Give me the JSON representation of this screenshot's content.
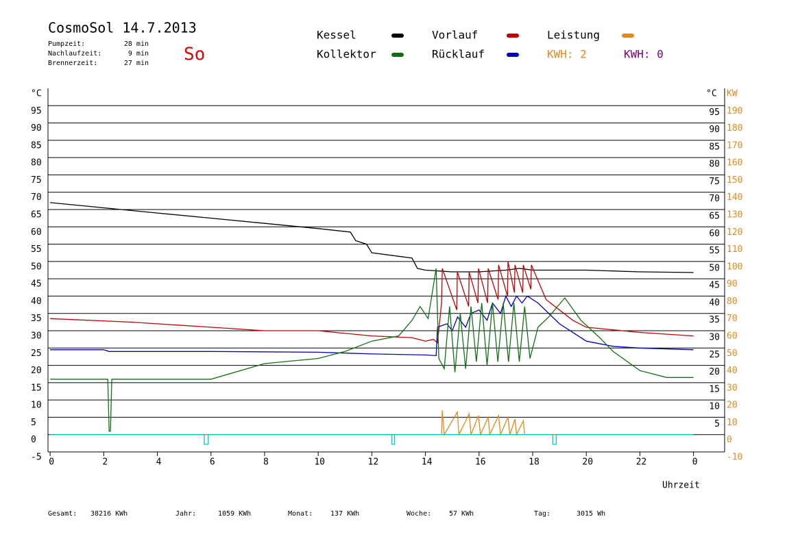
{
  "chart_data": {
    "type": "line",
    "title": "CosmoSol 14.7.2013",
    "day": "So",
    "stats": [
      {
        "label": "Pumpzeit:",
        "value": "28 min"
      },
      {
        "label": "Nachlaufzeit:",
        "value": "9 min"
      },
      {
        "label": "Brennerzeit:",
        "value": "27 min"
      }
    ],
    "kwh_labels": [
      {
        "text": "KWH: 2",
        "color": "#e08a1e"
      },
      {
        "text": "KWH: 0",
        "color": "#800080"
      }
    ],
    "y_unit": "°C",
    "y2_unit": "KW",
    "xlabel": "Uhrzeit",
    "xlim": [
      -0.08,
      25.16
    ],
    "xticks": [
      0,
      2,
      4,
      6,
      8,
      10,
      12,
      14,
      16,
      18,
      20,
      22,
      {
        "value": 24,
        "label": "0"
      }
    ],
    "ylim": [
      -5,
      100
    ],
    "yticks": [
      -5,
      0,
      5,
      10,
      15,
      20,
      25,
      30,
      35,
      40,
      45,
      50,
      55,
      60,
      65,
      70,
      75,
      80,
      85,
      90,
      95
    ],
    "y2lim": [
      -10,
      200
    ],
    "y2ticks": [
      -10,
      0,
      10,
      20,
      30,
      40,
      50,
      60,
      70,
      80,
      90,
      100,
      110,
      120,
      130,
      140,
      150,
      160,
      170,
      180,
      190
    ],
    "grid": true,
    "series": [
      {
        "name": "Kessel",
        "color": "#000000",
        "x": [
          0,
          2,
          4,
          6,
          8,
          10,
          11.2,
          11.4,
          11.8,
          12,
          13,
          13.5,
          13.7,
          14,
          15,
          16,
          17,
          17.5,
          18,
          20,
          22,
          24
        ],
        "values": [
          67,
          65.5,
          64,
          62.5,
          61,
          59.5,
          58.5,
          56,
          55,
          52.5,
          51.5,
          51,
          48,
          47.5,
          47,
          47,
          47.5,
          48,
          47.5,
          47.5,
          47,
          46.8
        ]
      },
      {
        "name": "Vorlauf",
        "color": "#c00000",
        "x": [
          0,
          3,
          6,
          8,
          10,
          12,
          13.5,
          14,
          14.3,
          14.45,
          14.6,
          14.63,
          15.17,
          15.19,
          15.61,
          15.63,
          15.96,
          15.98,
          16.32,
          16.34,
          16.71,
          16.73,
          17.06,
          17.08,
          17.32,
          17.34,
          17.63,
          17.65,
          17.93,
          17.95,
          18.5,
          19,
          19.5,
          20,
          22,
          24
        ],
        "values": [
          33.5,
          32.5,
          31,
          30,
          30,
          28.5,
          28,
          27,
          27.5,
          26.5,
          38,
          48,
          36,
          47,
          37,
          47,
          38,
          48,
          38,
          48,
          39,
          49,
          40,
          50,
          41,
          49,
          41,
          49,
          42,
          49,
          39,
          36,
          33,
          31,
          29.5,
          28.5
        ]
      },
      {
        "name": "Rücklauf",
        "color": "#0000c0",
        "x": [
          0,
          2,
          2.2,
          6,
          10,
          12,
          14,
          14.4,
          14.45,
          14.8,
          15,
          15.2,
          15.5,
          15.7,
          16,
          16.3,
          16.5,
          16.8,
          17,
          17.2,
          17.4,
          17.6,
          17.8,
          18.2,
          19,
          20,
          21,
          22,
          24
        ],
        "values": [
          24.5,
          24.5,
          24,
          24,
          23.8,
          23.3,
          23,
          22.8,
          31,
          32,
          30,
          34,
          31,
          35,
          36,
          33,
          38,
          35,
          40,
          37,
          40,
          38,
          40,
          38,
          32,
          27,
          25.5,
          25,
          24.5
        ]
      },
      {
        "name": "Kollektor",
        "color": "#107010",
        "x": [
          0,
          2,
          2.15,
          2.2,
          2.25,
          2.3,
          6,
          8,
          10,
          11,
          12,
          13,
          13.5,
          13.8,
          14.1,
          14.4,
          14.5,
          14.7,
          14.9,
          15.1,
          15.3,
          15.5,
          15.7,
          15.9,
          16.1,
          16.3,
          16.5,
          16.7,
          16.9,
          17.1,
          17.3,
          17.5,
          17.7,
          17.9,
          18.2,
          18.6,
          19.2,
          19.8,
          20.5,
          21,
          22,
          23,
          24
        ],
        "values": [
          16,
          16,
          16,
          1,
          1,
          16,
          16,
          20.5,
          22,
          24,
          27,
          28.5,
          33,
          37,
          33.5,
          48,
          22,
          19,
          37,
          18,
          35,
          19,
          37,
          21,
          38,
          20,
          38,
          21,
          38,
          21,
          38,
          21,
          37,
          22,
          31,
          34,
          39.5,
          33,
          28,
          24,
          18.5,
          16.5,
          16.5
        ]
      },
      {
        "name": "Leistung",
        "color": "#e08a1e",
        "axis": "y2",
        "x": [
          0,
          14.6,
          14.63,
          14.7,
          15.19,
          15.25,
          15.63,
          15.7,
          15.98,
          16.05,
          16.34,
          16.4,
          16.73,
          16.8,
          17.08,
          17.15,
          17.34,
          17.4,
          17.65,
          17.7,
          24
        ],
        "values": [
          0,
          0,
          14,
          0,
          13,
          0,
          12,
          0,
          11,
          0,
          10,
          0,
          11,
          0,
          10,
          0,
          9,
          0,
          8,
          0,
          0
        ]
      },
      {
        "color": "#00c8d0",
        "x": [
          0,
          5.75,
          5.75,
          5.9,
          5.9,
          12.75,
          12.75,
          12.85,
          12.85,
          18.75,
          18.75,
          18.88,
          18.88,
          24
        ],
        "values": [
          0,
          0,
          -2.8,
          -2.8,
          0,
          0,
          -2.8,
          -2.8,
          0,
          0,
          -2.8,
          -2.8,
          0,
          0
        ]
      }
    ],
    "totals": [
      {
        "label": "Gesamt:",
        "value": "38216 KWh"
      },
      {
        "label": "Jahr:",
        "value": "1059 KWh"
      },
      {
        "label": "Monat:",
        "value": "137 KWh"
      },
      {
        "label": "Woche:",
        "value": "57 KWh"
      },
      {
        "label": "Tag:",
        "value": "3015 Wh"
      }
    ]
  }
}
